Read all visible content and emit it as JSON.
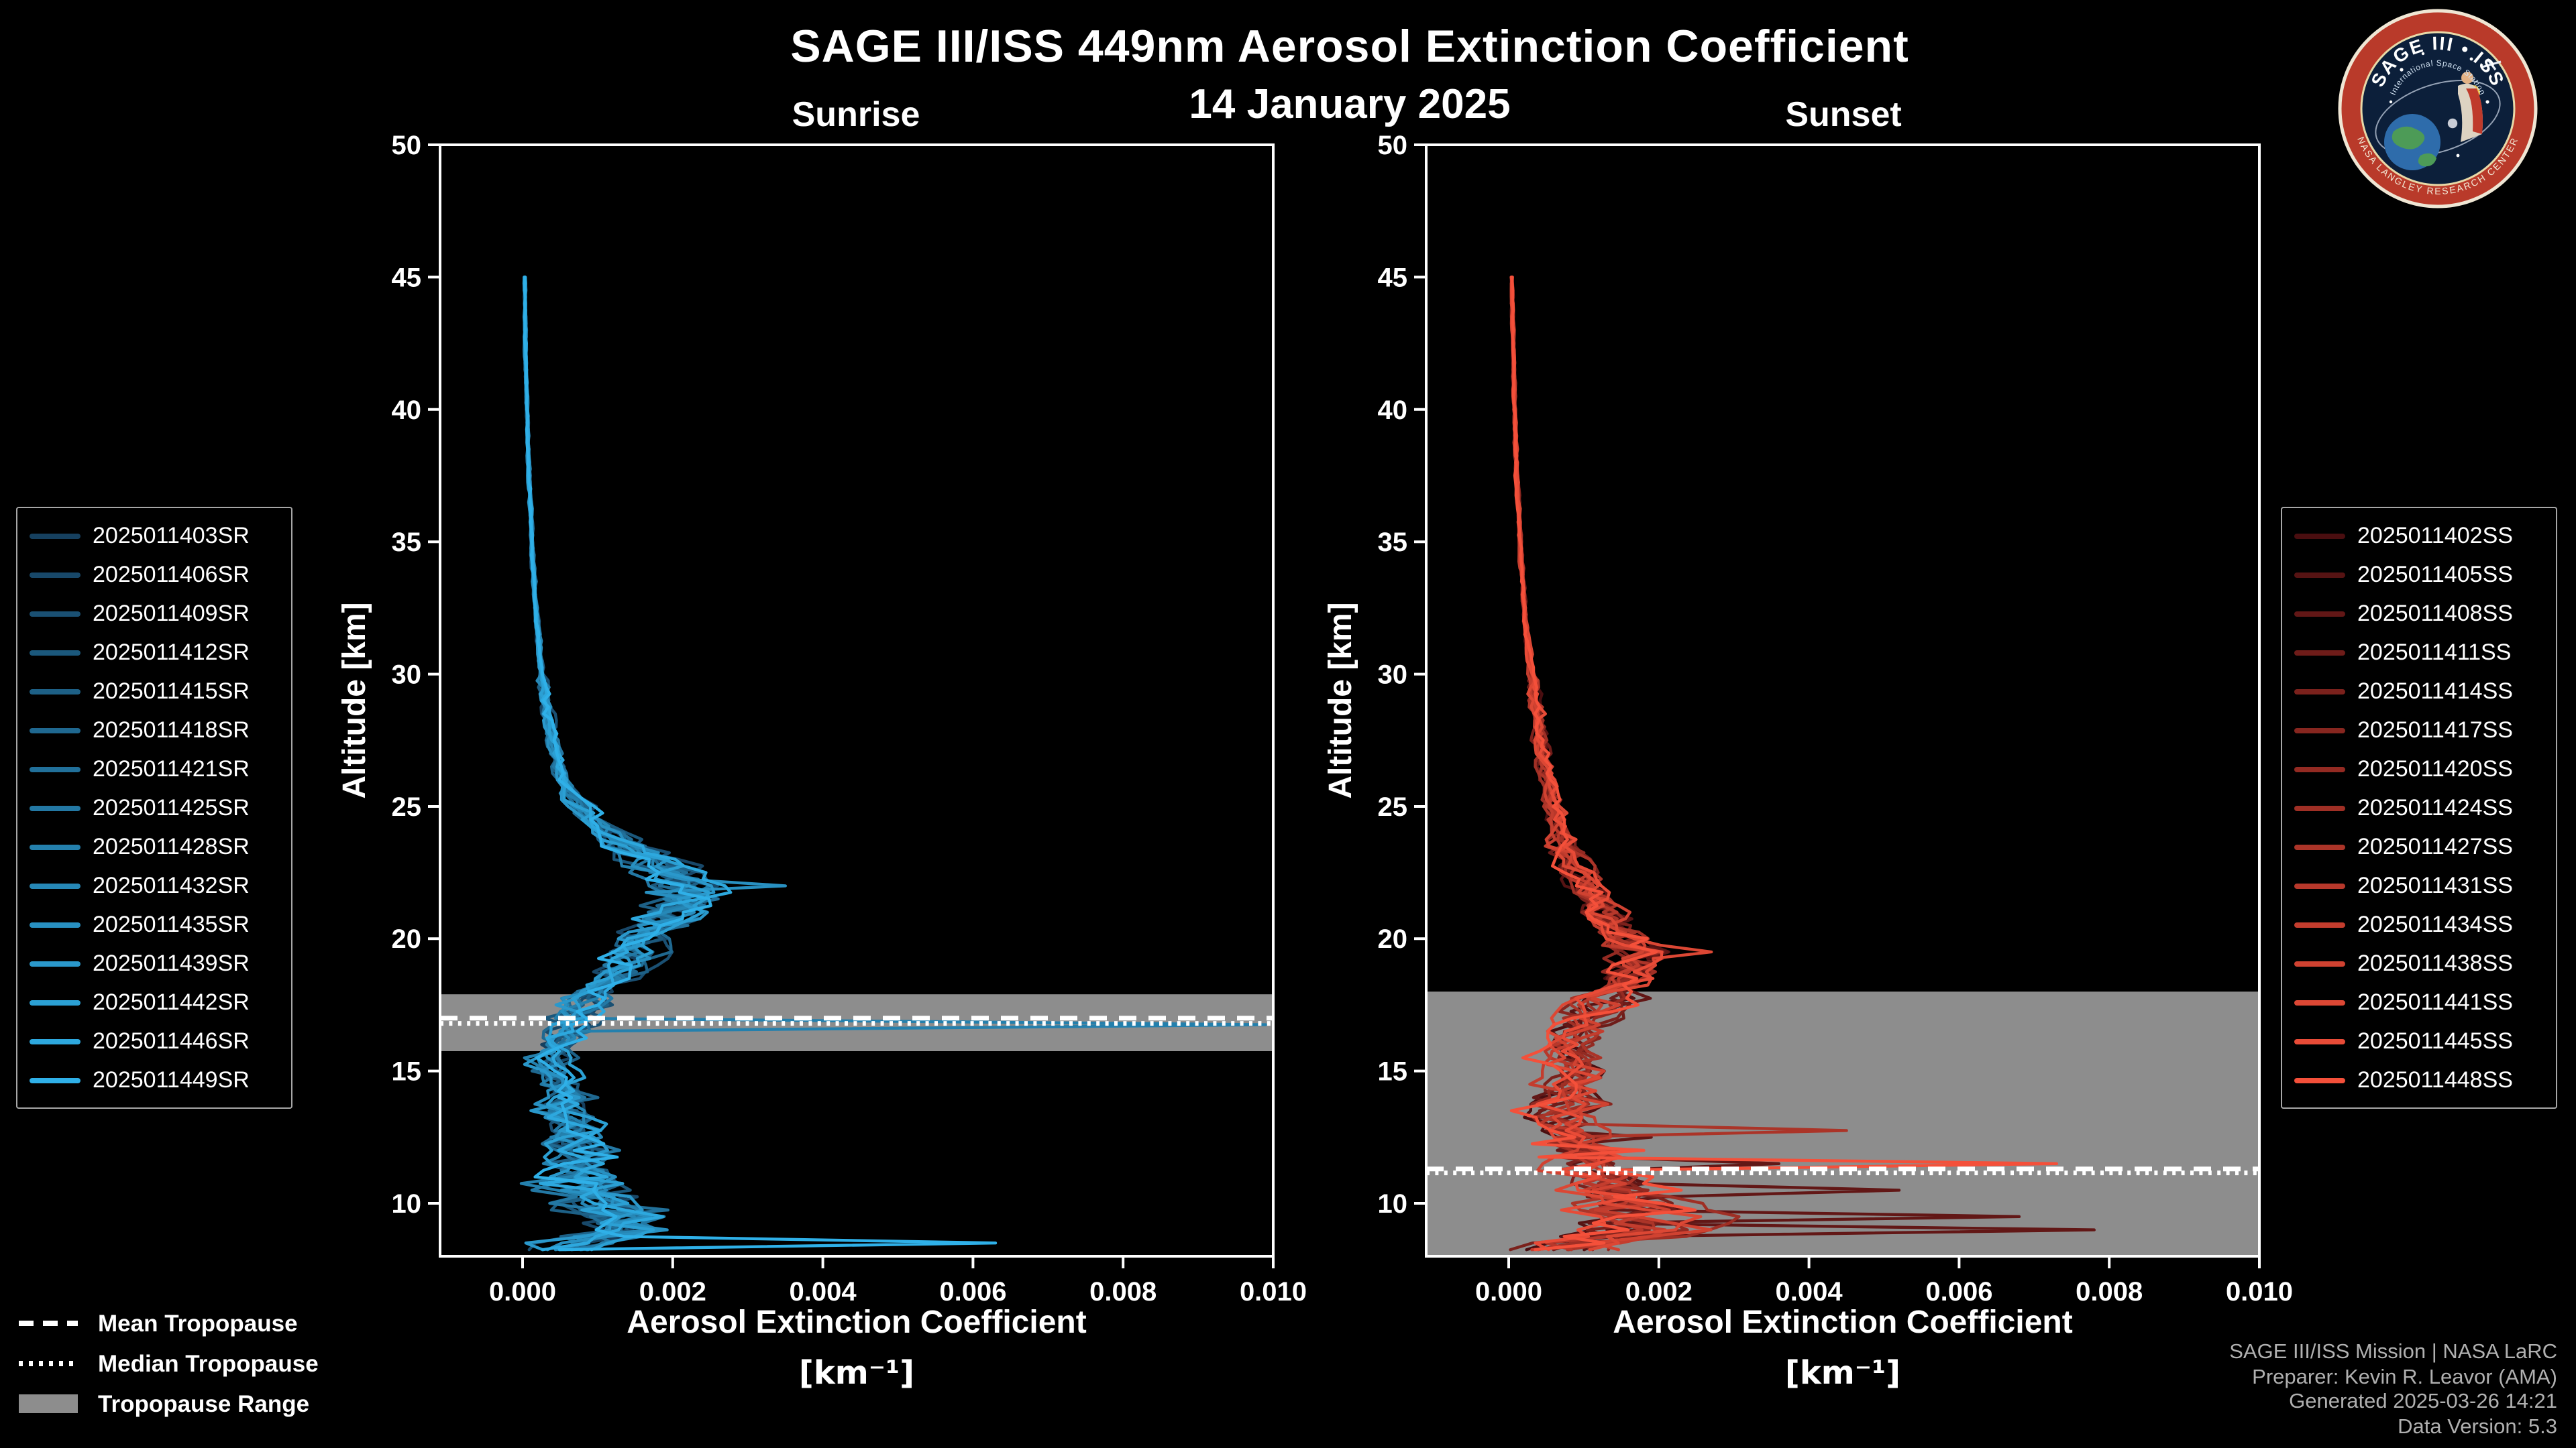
{
  "header": {
    "title": "SAGE III/ISS 449nm Aerosol Extinction Coefficient",
    "date": "14 January 2025"
  },
  "chart_data": [
    {
      "type": "line",
      "title": "Sunrise",
      "xlabel": "Aerosol Extinction Coefficient",
      "xunit": "[km⁻¹]",
      "ylabel": "Altitude [km]",
      "xlim": [
        -0.0011,
        0.01
      ],
      "ylim": [
        8,
        50
      ],
      "xticks": [
        "0.000",
        "0.002",
        "0.004",
        "0.006",
        "0.008",
        "0.010"
      ],
      "xtick_values": [
        0,
        0.002,
        0.004,
        0.006,
        0.008,
        0.01
      ],
      "yticks": [
        10,
        15,
        20,
        25,
        30,
        35,
        40,
        45,
        50
      ],
      "legend_position": "outside-left",
      "grid": false,
      "color_start": "#16405f",
      "color_end": "#2fb0e8",
      "series_names": [
        "2025011403SR",
        "2025011406SR",
        "2025011409SR",
        "2025011412SR",
        "2025011415SR",
        "2025011418SR",
        "2025011421SR",
        "2025011425SR",
        "2025011428SR",
        "2025011432SR",
        "2025011435SR",
        "2025011439SR",
        "2025011442SR",
        "2025011446SR",
        "2025011449SR"
      ],
      "base_profile": {
        "altitude_km": [
          45,
          42,
          40,
          38,
          35,
          33,
          30,
          28,
          26.5,
          25.5,
          24.5,
          23.5,
          22.5,
          22,
          21.5,
          21,
          20.5,
          20,
          19.5,
          19,
          18.5,
          18,
          17.5,
          17,
          16.5,
          16,
          15.5,
          15,
          14.5,
          14,
          13.5,
          13,
          12.5,
          12,
          11.5,
          11,
          10.5,
          10,
          9.5,
          9,
          8.75,
          8.5,
          8.25
        ],
        "extinction_km1": [
          3e-05,
          4e-05,
          6e-05,
          8e-05,
          0.00012,
          0.00016,
          0.00025,
          0.00035,
          0.00045,
          0.0006,
          0.0009,
          0.0014,
          0.0019,
          0.0022,
          0.0021,
          0.002,
          0.0019,
          0.0017,
          0.0016,
          0.0014,
          0.0012,
          0.001,
          0.0009,
          0.0007,
          0.0006,
          0.0005,
          0.0004,
          0.00045,
          0.0005,
          0.0006,
          0.0005,
          0.0006,
          0.0007,
          0.0008,
          0.0007,
          0.0008,
          0.0009,
          0.001,
          0.0012,
          0.0013,
          0.001,
          0.0008,
          0.0006
        ]
      },
      "outliers": [
        {
          "series": "2025011428SR",
          "series_index": 8,
          "points": [
            [
              16.75,
              0.0099
            ]
          ]
        },
        {
          "series": "2025011435SR",
          "series_index": 10,
          "points": [
            [
              22.0,
              0.0035
            ]
          ]
        },
        {
          "series": "2025011449SR",
          "series_index": 14,
          "points": [
            [
              8.5,
              0.0063
            ]
          ]
        }
      ],
      "tropopause": {
        "mean_km": 17.0,
        "median_km": 16.8,
        "range_km": [
          15.75,
          17.9
        ]
      }
    },
    {
      "type": "line",
      "title": "Sunset",
      "xlabel": "Aerosol Extinction Coefficient",
      "xunit": "[km⁻¹]",
      "ylabel": "Altitude [km]",
      "xlim": [
        -0.0011,
        0.01
      ],
      "ylim": [
        8,
        50
      ],
      "xticks": [
        "0.000",
        "0.002",
        "0.004",
        "0.006",
        "0.008",
        "0.010"
      ],
      "xtick_values": [
        0,
        0.002,
        0.004,
        0.006,
        0.008,
        0.01
      ],
      "yticks": [
        10,
        15,
        20,
        25,
        30,
        35,
        40,
        45,
        50
      ],
      "legend_position": "outside-right",
      "grid": false,
      "color_start": "#4a0e10",
      "color_end": "#f4503a",
      "series_names": [
        "2025011402SS",
        "2025011405SS",
        "2025011408SS",
        "2025011411SS",
        "2025011414SS",
        "2025011417SS",
        "2025011420SS",
        "2025011424SS",
        "2025011427SS",
        "2025011431SS",
        "2025011434SS",
        "2025011438SS",
        "2025011441SS",
        "2025011445SS",
        "2025011448SS"
      ],
      "base_profile": {
        "altitude_km": [
          45,
          42,
          40,
          38,
          35,
          32,
          30,
          28,
          26,
          25,
          24,
          23,
          22,
          21,
          20.5,
          20,
          19.5,
          19,
          18.5,
          18,
          17.5,
          17,
          16.5,
          16,
          15.5,
          15,
          14.5,
          14,
          13.5,
          13,
          12.5,
          12,
          11.5,
          11,
          10.5,
          10,
          9.5,
          9,
          8.75,
          8.5,
          8.25
        ],
        "extinction_km1": [
          4e-05,
          6e-05,
          8e-05,
          0.0001,
          0.00015,
          0.00022,
          0.0003,
          0.0004,
          0.0005,
          0.0006,
          0.0007,
          0.0008,
          0.001,
          0.0012,
          0.0014,
          0.0016,
          0.0018,
          0.0017,
          0.0016,
          0.0014,
          0.0012,
          0.001,
          0.0009,
          0.0008,
          0.0008,
          0.0008,
          0.0008,
          0.0008,
          0.0007,
          0.0007,
          0.0008,
          0.0009,
          0.001,
          0.0012,
          0.0014,
          0.0016,
          0.0017,
          0.0016,
          0.0013,
          0.001,
          0.0008
        ]
      },
      "outliers": [
        {
          "series": "2025011448SS",
          "series_index": 14,
          "points": [
            [
              12.0,
              0.0018
            ],
            [
              11.5,
              0.0073
            ],
            [
              11.25,
              0.0012
            ]
          ]
        },
        {
          "series": "2025011408SS",
          "series_index": 2,
          "points": [
            [
              12.5,
              0.0019
            ],
            [
              11.5,
              0.0036
            ],
            [
              10.5,
              0.0052
            ],
            [
              9.5,
              0.0068
            ],
            [
              9.0,
              0.0078
            ],
            [
              8.75,
              0.0016
            ]
          ]
        },
        {
          "series": "2025011427SS",
          "series_index": 8,
          "points": [
            [
              12.75,
              0.0045
            ]
          ]
        },
        {
          "series": "2025011441SS",
          "series_index": 12,
          "points": [
            [
              19.5,
              0.0027
            ]
          ]
        }
      ],
      "tropopause": {
        "mean_km": 11.3,
        "median_km": 11.15,
        "range_km": [
          8.0,
          18.0
        ]
      }
    }
  ],
  "tropopause_legend": {
    "mean": "Mean Tropopause",
    "median": "Median Tropopause",
    "range": "Tropopause Range"
  },
  "credits": [
    "SAGE III/ISS Mission | NASA LaRC",
    "Preparer: Kevin R. Leavor (AMA)",
    "Generated 2025-03-26 14:21",
    "Data Version: 5.3"
  ],
  "logo": {
    "arc_text": "SAGE III • ISS",
    "subtitle": "International Space Station",
    "ring_text": "NASA LANGLEY RESEARCH CENTER"
  },
  "colors": {
    "background": "#000000",
    "axis": "#ffffff",
    "tropopause_band": "#8d8d8d",
    "tropopause_line": "#ffffff",
    "text": "#ffffff",
    "credits_text": "#b0b0b0"
  }
}
